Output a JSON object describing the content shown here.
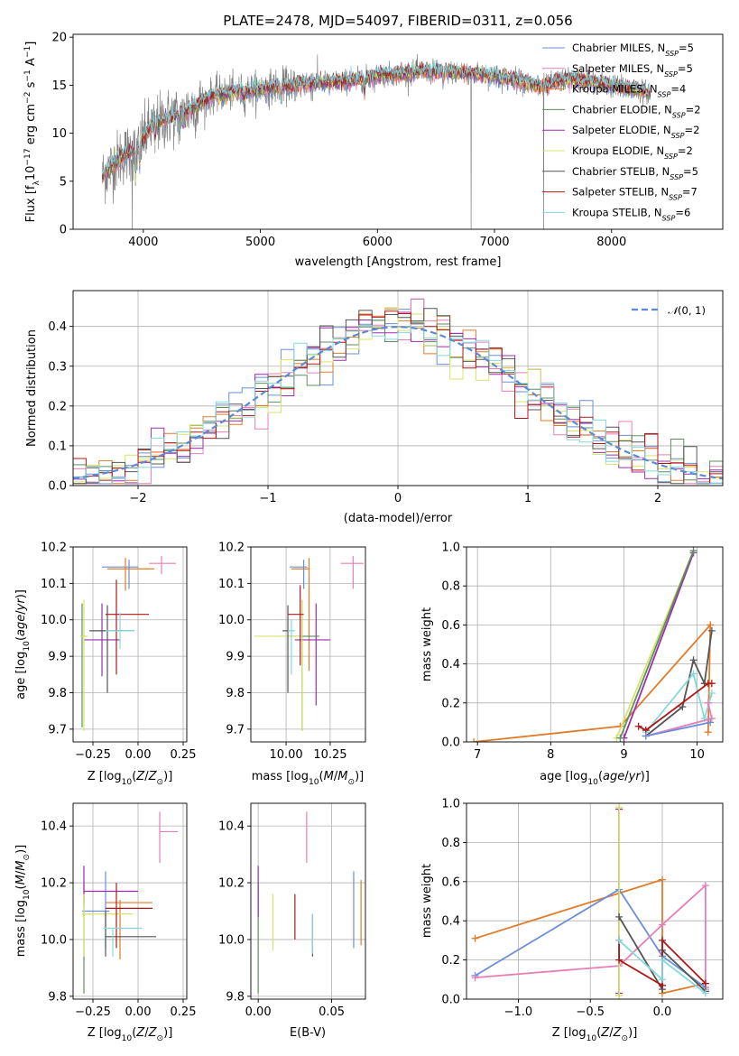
{
  "colors": {
    "Chabrier MILES": "#6a8fd8",
    "Salpeter MILES": "#e77fb7",
    "Kroupa MILES": "#e07b2a",
    "Chabrier ELODIE": "#5e8f5e",
    "Salpeter ELODIE": "#9b2fb0",
    "Kroupa ELODIE": "#d8e36a",
    "Chabrier STELIB": "#555555",
    "Salpeter STELIB": "#b01818",
    "Kroupa STELIB": "#85d8df",
    "data": "#808080",
    "gaussian": "#5b8ad6",
    "grid": "#b0b0b0"
  },
  "chart_data": [
    {
      "id": "spectrum",
      "type": "line",
      "title": "PLATE=2478, MJD=54097, FIBERID=0311, z=0.056",
      "xlabel": "wavelength [Angstrom, rest frame]",
      "ylabel": "Flux [fλ10⁻¹⁷ erg cm⁻² s⁻¹ A⁻¹]",
      "xlim": [
        3400,
        8950
      ],
      "ylim": [
        0,
        20.3
      ],
      "xticks": [
        4000,
        5000,
        6000,
        7000,
        8000
      ],
      "yticks": [
        0,
        5,
        10,
        15,
        20
      ],
      "grid": false,
      "legend_position": "top-right",
      "legend": [
        "Chabrier MILES, N_SSP=5",
        "Salpeter MILES, N_SSP=5",
        "Kroupa MILES, N_SSP=4",
        "Chabrier ELODIE, N_SSP=2",
        "Salpeter ELODIE, N_SSP=2",
        "Kroupa ELODIE, N_SSP=2",
        "Chabrier STELIB, N_SSP=5",
        "Salpeter STELIB, N_SSP=7",
        "Kroupa STELIB, N_SSP=6"
      ],
      "data_range_A": [
        3650,
        8330
      ],
      "continuum": [
        [
          3650,
          5.5
        ],
        [
          3800,
          7.5
        ],
        [
          3950,
          8.5
        ],
        [
          4050,
          10.5
        ],
        [
          4200,
          11.5
        ],
        [
          4400,
          12.5
        ],
        [
          4600,
          14.0
        ],
        [
          4800,
          14.3
        ],
        [
          5000,
          14.6
        ],
        [
          5200,
          15.0
        ],
        [
          5400,
          15.2
        ],
        [
          5600,
          15.3
        ],
        [
          5800,
          15.5
        ],
        [
          6000,
          16.0
        ],
        [
          6200,
          16.2
        ],
        [
          6400,
          16.4
        ],
        [
          6600,
          16.4
        ],
        [
          6800,
          16.2
        ],
        [
          7000,
          16.0
        ],
        [
          7200,
          15.5
        ],
        [
          7400,
          14.8
        ],
        [
          7600,
          15.6
        ],
        [
          7800,
          15.4
        ],
        [
          8000,
          15.0
        ],
        [
          8200,
          14.6
        ],
        [
          8330,
          14.2
        ]
      ],
      "absorption_lines": [
        [
          3934,
          3.0
        ],
        [
          3969,
          2.5
        ],
        [
          4101,
          1.5
        ],
        [
          4304,
          1.8
        ],
        [
          4340,
          1.5
        ],
        [
          4861,
          1.2
        ],
        [
          5175,
          1.8
        ],
        [
          5270,
          0.8
        ],
        [
          5890,
          1.5
        ],
        [
          6563,
          1.0
        ]
      ],
      "sky_artifacts": [
        [
          3905,
          0
        ],
        [
          6800,
          0
        ],
        [
          7420,
          0
        ]
      ]
    },
    {
      "id": "residuals",
      "type": "line",
      "xlabel": "(data-model)/error",
      "ylabel": "Normed distribution",
      "xlim": [
        -2.5,
        2.5
      ],
      "ylim": [
        0,
        0.49
      ],
      "xticks": [
        -2,
        -1,
        0,
        1,
        2
      ],
      "yticks": [
        0.0,
        0.1,
        0.2,
        0.3,
        0.4
      ],
      "grid": true,
      "legend_position": "top-right",
      "legend": [
        "𝒩(0, 1)"
      ],
      "bin_width": 0.1
    },
    {
      "id": "age-Z",
      "type": "scatter",
      "xlabel": "Z [log₁₀(Z/Z⊙)]",
      "ylabel": "age  [log₁₀(age/yr)]",
      "xlim": [
        -0.36,
        0.27
      ],
      "ylim": [
        9.665,
        10.2
      ],
      "xticks": [
        -0.25,
        0.0,
        0.25
      ],
      "xticklabels": [
        "−0.25",
        "0.00",
        "0.25"
      ],
      "yticks": [
        9.7,
        9.8,
        9.9,
        10.0,
        10.1,
        10.2
      ],
      "grid": true,
      "points": [
        {
          "model": "Chabrier MILES",
          "x": -0.05,
          "xerr": [
            0.15,
            0.05
          ],
          "y": 10.145,
          "yerr": [
            0.06,
            0.02
          ]
        },
        {
          "model": "Salpeter MILES",
          "x": 0.13,
          "xerr": [
            0.07,
            0.08
          ],
          "y": 10.155,
          "yerr": [
            0.03,
            0.02
          ]
        },
        {
          "model": "Kroupa MILES",
          "x": -0.07,
          "xerr": [
            0.1,
            0.16
          ],
          "y": 10.14,
          "yerr": [
            0.06,
            0.03
          ]
        },
        {
          "model": "Chabrier ELODIE",
          "x": -0.31,
          "xerr": [
            0.01,
            0.01
          ],
          "y": 9.955,
          "yerr": [
            0.25,
            0.09
          ]
        },
        {
          "model": "Salpeter ELODIE",
          "x": -0.2,
          "xerr": [
            0.1,
            0.1
          ],
          "y": 9.945,
          "yerr": [
            0.1,
            0.1
          ]
        },
        {
          "model": "Kroupa ELODIE",
          "x": -0.3,
          "xerr": [
            0.02,
            0.02
          ],
          "y": 9.955,
          "yerr": [
            0.26,
            0.1
          ]
        },
        {
          "model": "Chabrier STELIB",
          "x": -0.17,
          "xerr": [
            0.1,
            0.15
          ],
          "y": 9.97,
          "yerr": [
            0.17,
            0.07
          ]
        },
        {
          "model": "Salpeter STELIB",
          "x": -0.12,
          "xerr": [
            0.06,
            0.18
          ],
          "y": 10.015,
          "yerr": [
            0.165,
            0.095
          ]
        },
        {
          "model": "Kroupa STELIB",
          "x": -0.1,
          "xerr": [
            0.08,
            0.08
          ],
          "y": 9.97,
          "yerr": [
            0.05,
            0.05
          ]
        }
      ]
    },
    {
      "id": "age-mass",
      "type": "scatter",
      "xlabel": "mass [log₁₀(M/M⊙)]",
      "ylabel": "",
      "xlim": [
        9.8,
        10.45
      ],
      "ylim": [
        9.665,
        10.2
      ],
      "xticks": [
        10.0,
        10.25
      ],
      "xticklabels": [
        "10.00",
        "10.25"
      ],
      "yticks": [
        9.7,
        9.8,
        9.9,
        10.0,
        10.1,
        10.2
      ],
      "grid": true,
      "points": [
        {
          "model": "Chabrier MILES",
          "x": 10.1,
          "xerr": [
            0.08,
            0.02
          ],
          "y": 10.145,
          "yerr": [
            0.06,
            0.02
          ]
        },
        {
          "model": "Salpeter MILES",
          "x": 10.38,
          "xerr": [
            0.07,
            0.06
          ],
          "y": 10.155,
          "yerr": [
            0.07,
            0.02
          ]
        },
        {
          "model": "Kroupa MILES",
          "x": 10.13,
          "xerr": [
            0.1,
            0.0
          ],
          "y": 10.14,
          "yerr": [
            0.28,
            0.03
          ]
        },
        {
          "model": "Chabrier ELODIE",
          "x": 10.09,
          "xerr": [
            0.08,
            0.1
          ],
          "y": 9.955,
          "yerr": [
            0.26,
            0.1
          ]
        },
        {
          "model": "Salpeter ELODIE",
          "x": 10.17,
          "xerr": [
            0.12,
            0.08
          ],
          "y": 9.945,
          "yerr": [
            0.18,
            0.1
          ]
        },
        {
          "model": "Kroupa ELODIE",
          "x": 10.09,
          "xerr": [
            0.27,
            0.0
          ],
          "y": 9.955,
          "yerr": [
            0.26,
            0.1
          ]
        },
        {
          "model": "Chabrier STELIB",
          "x": 10.01,
          "xerr": [
            0.03,
            0.01
          ],
          "y": 9.97,
          "yerr": [
            0.17,
            0.07
          ]
        },
        {
          "model": "Salpeter STELIB",
          "x": 10.08,
          "xerr": [
            0.07,
            0.02
          ],
          "y": 10.015,
          "yerr": [
            0.14,
            0.08
          ]
        },
        {
          "model": "Kroupa STELIB",
          "x": 10.03,
          "xerr": [
            0.02,
            0.02
          ],
          "y": 9.97,
          "yerr": [
            0.12,
            0.03
          ]
        }
      ]
    },
    {
      "id": "weight-age",
      "type": "line",
      "xlabel": "age  [log₁₀(age/yr)]",
      "ylabel": "mass weight",
      "xlim": [
        6.85,
        10.35
      ],
      "ylim": [
        0,
        1.0
      ],
      "xticks": [
        7,
        8,
        9,
        10
      ],
      "yticks": [
        0.0,
        0.2,
        0.4,
        0.6,
        0.8,
        1.0
      ],
      "grid": true,
      "series": [
        {
          "model": "Kroupa MILES",
          "x": [
            6.95,
            8.95,
            10.18,
            10.15
          ],
          "y": [
            0.0,
            0.08,
            0.6,
            0.05
          ]
        },
        {
          "model": "Kroupa ELODIE",
          "x": [
            8.9,
            9.95
          ],
          "y": [
            0.02,
            0.98
          ]
        },
        {
          "model": "Salpeter ELODIE",
          "x": [
            9.0,
            9.95
          ],
          "y": [
            0.02,
            0.97
          ]
        },
        {
          "model": "Chabrier ELODIE",
          "x": [
            8.95,
            9.95
          ],
          "y": [
            0.02,
            0.98
          ]
        },
        {
          "model": "Chabrier STELIB",
          "x": [
            9.3,
            9.8,
            9.95,
            10.1,
            10.2
          ],
          "y": [
            0.03,
            0.18,
            0.42,
            0.3,
            0.57
          ]
        },
        {
          "model": "Kroupa STELIB",
          "x": [
            9.3,
            9.95,
            10.1,
            10.2
          ],
          "y": [
            0.05,
            0.35,
            0.12,
            0.25
          ]
        },
        {
          "model": "Salpeter STELIB",
          "x": [
            9.2,
            9.3,
            10.15,
            10.2
          ],
          "y": [
            0.08,
            0.06,
            0.3,
            0.3
          ]
        },
        {
          "model": "Salpeter MILES",
          "x": [
            9.3,
            10.2,
            10.15
          ],
          "y": [
            0.03,
            0.12,
            0.2
          ]
        },
        {
          "model": "Chabrier MILES",
          "x": [
            9.3,
            10.18
          ],
          "y": [
            0.03,
            0.1
          ]
        }
      ]
    },
    {
      "id": "mass-Z",
      "type": "scatter",
      "xlabel": "Z [log₁₀(Z/Z⊙)]",
      "ylabel": "mass [log₁₀(M/M⊙)]",
      "xlim": [
        -0.36,
        0.27
      ],
      "ylim": [
        9.79,
        10.48
      ],
      "xticks": [
        -0.25,
        0.0,
        0.25
      ],
      "xticklabels": [
        "−0.25",
        "0.00",
        "0.25"
      ],
      "yticks": [
        9.8,
        10.0,
        10.2,
        10.4
      ],
      "grid": true,
      "points": [
        {
          "model": "Chabrier MILES",
          "x": -0.18,
          "xerr": [
            0.13,
            0.02
          ],
          "y": 10.1,
          "yerr": [
            0.13,
            0.14
          ]
        },
        {
          "model": "Salpeter MILES",
          "x": 0.12,
          "xerr": [
            0.0,
            0.1
          ],
          "y": 10.38,
          "yerr": [
            0.11,
            0.07
          ]
        },
        {
          "model": "Kroupa MILES",
          "x": -0.1,
          "xerr": [
            0.08,
            0.18
          ],
          "y": 10.13,
          "yerr": [
            0.2,
            0.01
          ]
        },
        {
          "model": "Chabrier ELODIE",
          "x": -0.3,
          "xerr": [
            0.01,
            0.01
          ],
          "y": 10.09,
          "yerr": [
            0.28,
            0.11
          ]
        },
        {
          "model": "Salpeter ELODIE",
          "x": -0.3,
          "xerr": [
            0.0,
            0.3
          ],
          "y": 10.17,
          "yerr": [
            0.05,
            0.09
          ]
        },
        {
          "model": "Kroupa ELODIE",
          "x": -0.3,
          "xerr": [
            0.01,
            0.27
          ],
          "y": 10.09,
          "yerr": [
            0.15,
            0.07
          ]
        },
        {
          "model": "Chabrier STELIB",
          "x": -0.18,
          "xerr": [
            0.0,
            0.28
          ],
          "y": 10.01,
          "yerr": [
            0.07,
            0.09
          ]
        },
        {
          "model": "Salpeter STELIB",
          "x": -0.12,
          "xerr": [
            0.06,
            0.2
          ],
          "y": 10.11,
          "yerr": [
            0.14,
            0.09
          ]
        },
        {
          "model": "Kroupa STELIB",
          "x": -0.14,
          "xerr": [
            0.05,
            0.16
          ],
          "y": 10.04,
          "yerr": [
            0.1,
            0.0
          ]
        }
      ]
    },
    {
      "id": "mass-EBV",
      "type": "scatter",
      "xlabel": "E(B-V)",
      "ylabel": "",
      "xlim": [
        -0.005,
        0.073
      ],
      "ylim": [
        9.79,
        10.48
      ],
      "xticks": [
        0.0,
        0.05
      ],
      "xticklabels": [
        "0.00",
        "0.05"
      ],
      "yticks": [
        9.8,
        10.0,
        10.2,
        10.4
      ],
      "grid": true,
      "points": [
        {
          "model": "Chabrier MILES",
          "x": 0.065,
          "y": 10.1,
          "yerr": [
            0.13,
            0.14
          ]
        },
        {
          "model": "Salpeter MILES",
          "x": 0.033,
          "y": 10.38,
          "yerr": [
            0.11,
            0.07
          ]
        },
        {
          "model": "Kroupa MILES",
          "x": 0.07,
          "y": 10.1,
          "yerr": [
            0.12,
            0.11
          ]
        },
        {
          "model": "Chabrier ELODIE",
          "x": 0.0,
          "y": 10.09,
          "yerr": [
            0.28,
            0.11
          ]
        },
        {
          "model": "Salpeter ELODIE",
          "x": 0.0,
          "y": 10.17,
          "yerr": [
            0.09,
            0.09
          ]
        },
        {
          "model": "Kroupa ELODIE",
          "x": 0.01,
          "y": 10.09,
          "yerr": [
            0.13,
            0.07
          ]
        },
        {
          "model": "Chabrier STELIB",
          "x": 0.037,
          "y": 10.01,
          "yerr": [
            0.07,
            0.08
          ]
        },
        {
          "model": "Salpeter STELIB",
          "x": 0.025,
          "y": 10.08,
          "yerr": [
            0.08,
            0.08
          ]
        },
        {
          "model": "Kroupa STELIB",
          "x": 0.037,
          "y": 10.04,
          "yerr": [
            0.09,
            0.05
          ]
        }
      ]
    },
    {
      "id": "weight-Z",
      "type": "line",
      "xlabel": "Z [log₁₀(Z/Z⊙)]",
      "ylabel": "mass weight",
      "xlim": [
        -1.36,
        0.42
      ],
      "ylim": [
        0,
        1.0
      ],
      "xticks": [
        -1.0,
        -0.5,
        0.0
      ],
      "xticklabels": [
        "−1.0",
        "−0.5",
        "0.0"
      ],
      "yticks": [
        0.0,
        0.2,
        0.4,
        0.6,
        0.8,
        1.0
      ],
      "grid": true,
      "series": [
        {
          "model": "Kroupa MILES",
          "x": [
            -1.3,
            0.0,
            0.0,
            0.3
          ],
          "y": [
            0.31,
            0.61,
            0.03,
            0.08
          ]
        },
        {
          "model": "Chabrier MILES",
          "x": [
            -1.3,
            -0.3,
            0.0,
            0.3
          ],
          "y": [
            0.12,
            0.56,
            0.22,
            0.06
          ]
        },
        {
          "model": "Salpeter MILES",
          "x": [
            -1.3,
            -0.3,
            0.0,
            0.3,
            0.3
          ],
          "y": [
            0.11,
            0.17,
            0.38,
            0.58,
            0.05
          ]
        },
        {
          "model": "Chabrier ELODIE",
          "x": [
            -0.3,
            -0.3
          ],
          "y": [
            0.02,
            0.97
          ]
        },
        {
          "model": "Salpeter ELODIE",
          "x": [
            -0.3,
            -0.3
          ],
          "y": [
            0.03,
            0.97
          ]
        },
        {
          "model": "Kroupa ELODIE",
          "x": [
            -0.3,
            -0.3
          ],
          "y": [
            0.02,
            0.98
          ]
        },
        {
          "model": "Chabrier STELIB",
          "x": [
            -0.3,
            0.0,
            0.0,
            0.3
          ],
          "y": [
            0.42,
            0.05,
            0.25,
            0.04
          ]
        },
        {
          "model": "Salpeter STELIB",
          "x": [
            -0.3,
            -0.3,
            0.0,
            0.0,
            0.3
          ],
          "y": [
            0.3,
            0.2,
            0.07,
            0.3,
            0.08
          ]
        },
        {
          "model": "Kroupa STELIB",
          "x": [
            -0.3,
            0.0,
            0.0,
            0.3
          ],
          "y": [
            0.3,
            0.1,
            0.2,
            0.03
          ]
        }
      ]
    }
  ]
}
